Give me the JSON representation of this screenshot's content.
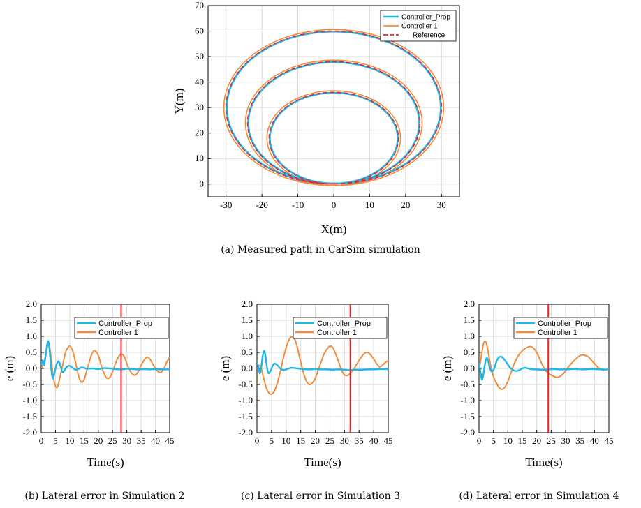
{
  "chart_data": [
    {
      "type": "line",
      "title": "",
      "caption": "(a) Measured path in CarSim simulation",
      "xlabel": "X(m)",
      "ylabel": "Y(m)",
      "xlim": [
        -35,
        35
      ],
      "ylim": [
        -5,
        70
      ],
      "xticks": [
        -30,
        -20,
        -10,
        0,
        10,
        20,
        30
      ],
      "yticks": [
        0,
        10,
        20,
        30,
        40,
        50,
        60,
        70
      ],
      "grid": true,
      "legend": "top-right",
      "loops": [
        {
          "center_y": 18,
          "radius_x": 18,
          "radius_y": 18
        },
        {
          "center_y": 24,
          "radius_x": 24,
          "radius_y": 24
        },
        {
          "center_y": 30,
          "radius_x": 30,
          "radius_y": 30
        }
      ],
      "series": [
        {
          "name": "Controller_Prop",
          "color": "#1fb6ec"
        },
        {
          "name": "Controller 1",
          "color": "#f28c3b"
        },
        {
          "name": "Reference",
          "color": "#e8262a",
          "dash": true
        }
      ]
    },
    {
      "type": "line",
      "caption": "(b) Lateral error in Simulation 2",
      "xlabel": "Time(s)",
      "ylabel": "e (m)",
      "xlim": [
        0,
        45
      ],
      "ylim": [
        -2,
        2
      ],
      "xticks": [
        0,
        5,
        10,
        15,
        20,
        25,
        30,
        35,
        40,
        45
      ],
      "yticks": [
        -2.0,
        -1.5,
        -1.0,
        -0.5,
        0.0,
        0.5,
        1.0,
        1.5,
        2.0
      ],
      "ytick_labels": [
        "-2.0",
        "-1.5",
        "-1.0",
        "-0.5",
        "0.0",
        "0.5",
        "1.0",
        "1.5",
        "2.0"
      ],
      "grid": true,
      "legend": "top-right",
      "marker_x": 28,
      "series": [
        {
          "name": "Controller_Prop",
          "color": "#1fb6ec",
          "x": [
            0,
            0.5,
            1,
            1.5,
            2,
            2.5,
            3,
            3.5,
            4,
            4.5,
            5,
            5.5,
            6,
            6.5,
            7,
            7.5,
            8,
            9,
            10,
            11,
            12,
            13,
            14,
            15,
            16,
            18,
            20,
            22,
            24,
            26,
            28,
            30,
            32,
            34,
            36,
            38,
            40,
            42,
            45
          ],
          "y": [
            0.1,
            0.25,
            0.1,
            0.35,
            0.7,
            0.85,
            0.5,
            0.0,
            -0.3,
            -0.2,
            0.0,
            0.15,
            0.22,
            0.15,
            0.0,
            -0.12,
            -0.08,
            0.05,
            0.08,
            0.02,
            -0.04,
            -0.02,
            0.03,
            0.02,
            -0.01,
            0.0,
            -0.02,
            0.01,
            0.0,
            -0.02,
            -0.03,
            -0.01,
            -0.02,
            -0.03,
            -0.02,
            -0.03,
            -0.02,
            -0.03,
            -0.03
          ]
        },
        {
          "name": "Controller 1",
          "color": "#f28c3b",
          "x": [
            0,
            1,
            2,
            2.5,
            3,
            3.5,
            4,
            4.5,
            5,
            5.5,
            6,
            6.5,
            7,
            7.5,
            8,
            8.5,
            9,
            10,
            11,
            12,
            13,
            14,
            15,
            16,
            17,
            18,
            19,
            20,
            21,
            22,
            23,
            24,
            25,
            26,
            27,
            28,
            29,
            30,
            31,
            32,
            33,
            34,
            35,
            36,
            37,
            38,
            39,
            40,
            41,
            42,
            43,
            44,
            45
          ],
          "y": [
            0.0,
            0.2,
            0.6,
            0.8,
            0.65,
            0.3,
            -0.1,
            -0.4,
            -0.55,
            -0.6,
            -0.5,
            -0.3,
            -0.1,
            0.1,
            0.3,
            0.5,
            0.6,
            0.7,
            0.55,
            0.2,
            -0.2,
            -0.42,
            -0.35,
            -0.05,
            0.25,
            0.5,
            0.55,
            0.4,
            0.1,
            -0.15,
            -0.3,
            -0.28,
            -0.1,
            0.15,
            0.35,
            0.45,
            0.38,
            0.15,
            -0.05,
            -0.18,
            -0.2,
            -0.1,
            0.1,
            0.25,
            0.35,
            0.3,
            0.15,
            0.0,
            -0.1,
            -0.12,
            0.0,
            0.2,
            0.35
          ]
        }
      ]
    },
    {
      "type": "line",
      "caption": "(c) Lateral error in Simulation 3",
      "xlabel": "Time(s)",
      "ylabel": "e (m)",
      "xlim": [
        0,
        45
      ],
      "ylim": [
        -2,
        2
      ],
      "xticks": [
        0,
        5,
        10,
        15,
        20,
        25,
        30,
        35,
        40,
        45
      ],
      "yticks": [
        -2.0,
        -1.5,
        -1.0,
        -0.5,
        0.0,
        0.5,
        1.0,
        1.5,
        2.0
      ],
      "ytick_labels": [
        "-2.0",
        "-1.5",
        "-1.0",
        "-0.5",
        "0.0",
        "0.5",
        "1.0",
        "1.5",
        "2.0"
      ],
      "grid": true,
      "legend": "top-right",
      "marker_x": 32,
      "series": [
        {
          "name": "Controller_Prop",
          "color": "#1fb6ec",
          "x": [
            0,
            0.5,
            1,
            1.5,
            2,
            2.5,
            3,
            3.5,
            4,
            4.5,
            5,
            5.5,
            6,
            7,
            8,
            9,
            10,
            11,
            12,
            14,
            16,
            18,
            20,
            22,
            24,
            26,
            28,
            30,
            32,
            34,
            36,
            38,
            40,
            42,
            45
          ],
          "y": [
            0.2,
            0.05,
            -0.15,
            0.05,
            0.4,
            0.55,
            0.35,
            0.0,
            -0.15,
            -0.1,
            0.0,
            0.1,
            0.15,
            0.1,
            0.0,
            -0.05,
            -0.03,
            0.0,
            0.02,
            0.0,
            -0.02,
            -0.03,
            -0.02,
            -0.03,
            -0.03,
            -0.04,
            -0.03,
            -0.04,
            -0.05,
            -0.04,
            -0.04,
            -0.03,
            -0.03,
            -0.02,
            -0.02
          ]
        },
        {
          "name": "Controller 1",
          "color": "#f28c3b",
          "x": [
            0,
            1,
            1.5,
            2,
            2.5,
            3,
            4,
            5,
            6,
            7,
            8,
            9,
            10,
            11,
            12,
            13,
            14,
            15,
            16,
            17,
            18,
            19,
            20,
            21,
            22,
            23,
            24,
            25,
            26,
            27,
            28,
            29,
            30,
            31,
            32,
            33,
            34,
            35,
            36,
            37,
            38,
            39,
            40,
            41,
            42,
            43,
            44,
            45
          ],
          "y": [
            0.0,
            0.1,
            0.0,
            -0.2,
            -0.35,
            -0.55,
            -0.75,
            -0.8,
            -0.7,
            -0.45,
            -0.1,
            0.3,
            0.65,
            0.9,
            0.98,
            0.9,
            0.6,
            0.2,
            -0.15,
            -0.4,
            -0.5,
            -0.45,
            -0.3,
            -0.05,
            0.2,
            0.45,
            0.6,
            0.7,
            0.65,
            0.45,
            0.2,
            -0.05,
            -0.2,
            -0.22,
            -0.15,
            -0.05,
            0.1,
            0.25,
            0.38,
            0.48,
            0.5,
            0.42,
            0.3,
            0.15,
            0.05,
            0.1,
            0.18,
            0.25
          ]
        }
      ]
    },
    {
      "type": "line",
      "caption": "(d) Lateral error in Simulation 4",
      "xlabel": "Time(s)",
      "ylabel": "e (m)",
      "xlim": [
        0,
        45
      ],
      "ylim": [
        -2,
        2
      ],
      "xticks": [
        0,
        5,
        10,
        15,
        20,
        25,
        30,
        35,
        40,
        45
      ],
      "yticks": [
        -2.0,
        -1.5,
        -1.0,
        -0.5,
        0.0,
        0.5,
        1.0,
        1.5,
        2.0
      ],
      "ytick_labels": [
        "-2.0",
        "-1.5",
        "-1.0",
        "-0.5",
        "0.0",
        "0.5",
        "1.0",
        "1.5",
        "2.0"
      ],
      "grid": true,
      "legend": "top-right",
      "marker_x": 24,
      "series": [
        {
          "name": "Controller_Prop",
          "color": "#1fb6ec",
          "x": [
            0,
            0.5,
            1,
            1.5,
            2,
            2.5,
            3,
            3.5,
            4,
            4.5,
            5,
            5.5,
            6,
            6.5,
            7,
            7.5,
            8,
            9,
            10,
            11,
            12,
            13,
            14,
            15,
            16,
            17,
            18,
            19,
            20,
            22,
            24,
            26,
            28,
            30,
            32,
            34,
            36,
            38,
            40,
            42,
            45
          ],
          "y": [
            0.2,
            -0.1,
            -0.35,
            -0.2,
            0.1,
            0.3,
            0.3,
            0.1,
            -0.05,
            -0.1,
            -0.05,
            0.05,
            0.2,
            0.3,
            0.35,
            0.37,
            0.35,
            0.25,
            0.12,
            0.0,
            -0.06,
            -0.08,
            -0.05,
            0.0,
            0.02,
            0.0,
            -0.02,
            -0.03,
            -0.03,
            -0.04,
            -0.03,
            -0.02,
            -0.03,
            -0.03,
            -0.02,
            -0.02,
            -0.03,
            -0.02,
            -0.02,
            -0.03,
            -0.03
          ]
        },
        {
          "name": "Controller 1",
          "color": "#f28c3b",
          "x": [
            0,
            0.5,
            1,
            1.5,
            2,
            2.5,
            3,
            3.5,
            4,
            4.5,
            5,
            6,
            7,
            8,
            9,
            10,
            11,
            12,
            13,
            14,
            15,
            16,
            17,
            18,
            19,
            20,
            21,
            22,
            23,
            24,
            25,
            26,
            27,
            28,
            29,
            30,
            31,
            32,
            33,
            34,
            35,
            36,
            37,
            38,
            39,
            40,
            41,
            42,
            43,
            44,
            45
          ],
          "y": [
            0.0,
            0.2,
            0.5,
            0.75,
            0.85,
            0.8,
            0.6,
            0.35,
            0.1,
            -0.1,
            -0.25,
            -0.45,
            -0.6,
            -0.65,
            -0.58,
            -0.4,
            -0.15,
            0.1,
            0.3,
            0.45,
            0.55,
            0.62,
            0.67,
            0.68,
            0.62,
            0.5,
            0.3,
            0.1,
            -0.05,
            -0.15,
            -0.2,
            -0.25,
            -0.28,
            -0.25,
            -0.18,
            -0.08,
            0.05,
            0.15,
            0.25,
            0.33,
            0.4,
            0.42,
            0.4,
            0.35,
            0.25,
            0.15,
            0.05,
            -0.02,
            -0.05,
            -0.04,
            -0.02
          ]
        }
      ]
    }
  ]
}
